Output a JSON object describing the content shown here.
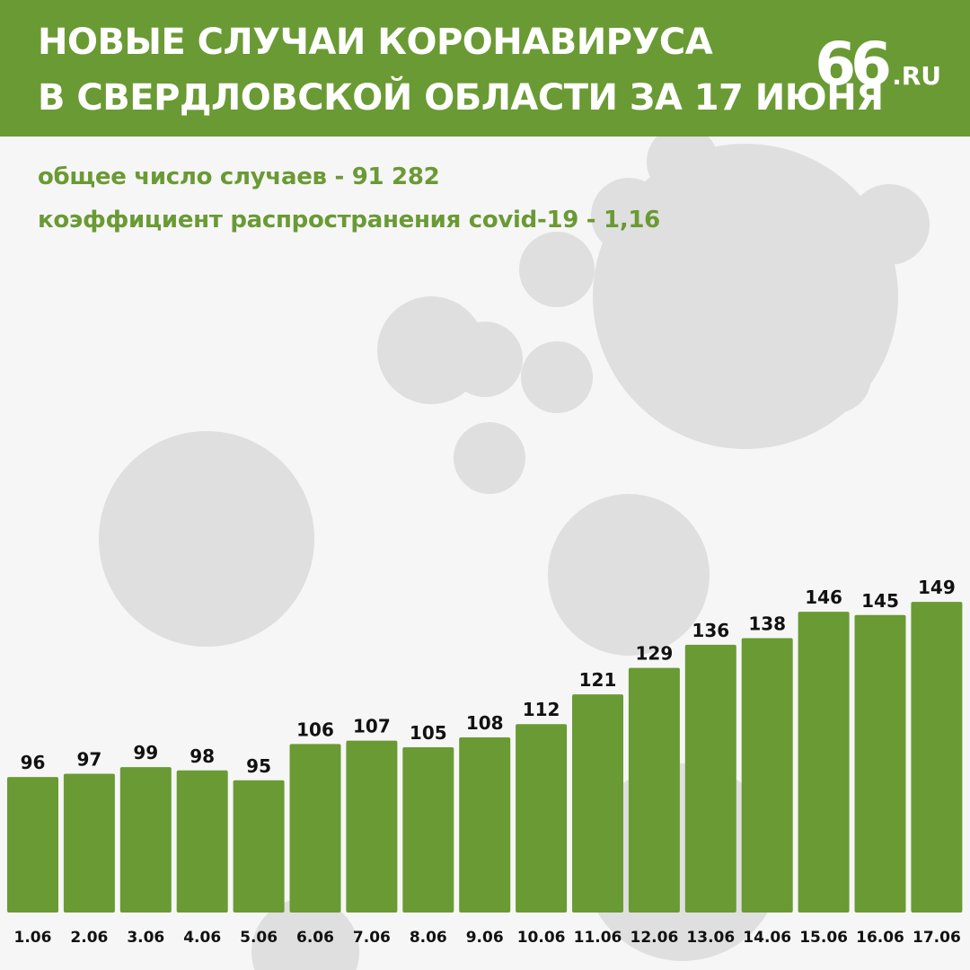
{
  "header": {
    "title_line1": "НОВЫЕ СЛУЧАИ КОРОНАВИРУСА",
    "title_line2": "В СВЕРДЛОВСКОЙ ОБЛАСТИ ЗА 17 ИЮНЯ",
    "logo_number": "66",
    "logo_domain": ".RU"
  },
  "stats": {
    "total_cases": "общее число случаев - 91 282",
    "spread_coefficient": "коэффициент распространения covid-19 - 1,16"
  },
  "colors": {
    "accent": "#6a9a34",
    "header_text": "#ffffff",
    "label_text": "#111111",
    "background": "#f6f6f6"
  },
  "chart_data": {
    "type": "bar",
    "categories": [
      "1.06",
      "2.06",
      "3.06",
      "4.06",
      "5.06",
      "6.06",
      "7.06",
      "8.06",
      "9.06",
      "10.06",
      "11.06",
      "12.06",
      "13.06",
      "14.06",
      "15.06",
      "16.06",
      "17.06"
    ],
    "values": [
      96,
      97,
      99,
      98,
      95,
      106,
      107,
      105,
      108,
      112,
      121,
      129,
      136,
      138,
      146,
      145,
      149
    ],
    "title": "",
    "xlabel": "",
    "ylabel": "",
    "data_labels": true,
    "grid": false,
    "legend": "none"
  }
}
